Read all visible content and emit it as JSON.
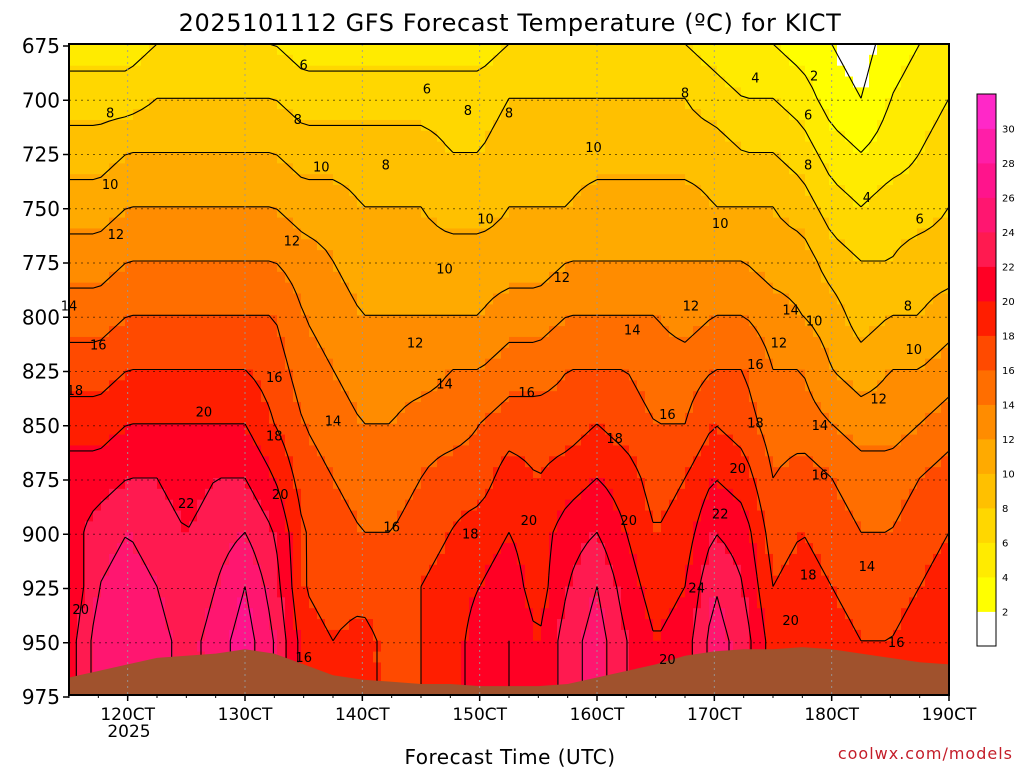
{
  "chart_data": {
    "type": "heatmap",
    "title": "2025101112 GFS Forecast Temperature (ºC) for KICT",
    "xlabel": "Forecast Time (UTC)",
    "ylabel": "",
    "watermark": "coolwx.com/models",
    "y_ticks": [
      "675",
      "700",
      "725",
      "750",
      "775",
      "800",
      "825",
      "850",
      "875",
      "900",
      "925",
      "950",
      "975"
    ],
    "y_tick_values": [
      675,
      700,
      725,
      750,
      775,
      800,
      825,
      850,
      875,
      900,
      925,
      950,
      975
    ],
    "ylim": [
      975,
      675
    ],
    "x_ticks": [
      "120CT",
      "130CT",
      "140CT",
      "150CT",
      "160CT",
      "170CT",
      "180CT",
      "190CT"
    ],
    "x_tick_values": [
      12,
      13,
      14,
      15,
      16,
      17,
      18,
      19
    ],
    "x_sublabel": "2025",
    "xlim": [
      11.5,
      19.0
    ],
    "units": "°C",
    "colorbar": {
      "ticks": [
        "2",
        "4",
        "6",
        "8",
        "10",
        "12",
        "14",
        "16",
        "18",
        "20",
        "22",
        "24",
        "26",
        "28",
        "30"
      ],
      "levels": [
        0,
        2,
        4,
        6,
        8,
        10,
        12,
        14,
        16,
        18,
        20,
        22,
        24,
        26,
        28,
        30,
        32
      ],
      "colors": [
        "#ffffff",
        "#ffff00",
        "#ffeb00",
        "#ffd700",
        "#ffc000",
        "#ffaa00",
        "#ff8c00",
        "#ff6e00",
        "#ff4a00",
        "#ff1e00",
        "#ff0024",
        "#ff1a50",
        "#ff1670",
        "#ff148c",
        "#ff1ea8",
        "#ff28c8"
      ]
    },
    "temperature_grid": {
      "x": [
        11.5,
        11.75,
        12.0,
        12.25,
        12.5,
        12.75,
        13.0,
        13.25,
        13.5,
        13.75,
        14.0,
        14.25,
        14.5,
        14.75,
        15.0,
        15.25,
        15.5,
        15.75,
        16.0,
        16.25,
        16.5,
        16.75,
        17.0,
        17.25,
        17.5,
        17.75,
        18.0,
        18.25,
        18.5,
        18.75,
        19.0
      ],
      "levels": [
        675,
        700,
        725,
        750,
        775,
        800,
        825,
        850,
        875,
        900,
        925,
        950,
        975
      ],
      "values": [
        [
          5,
          7,
          9,
          11,
          13,
          15,
          17,
          19,
          21,
          21,
          20,
          21,
          21
        ],
        [
          5,
          7,
          9,
          11,
          13,
          15,
          17,
          19,
          21,
          23,
          24,
          25,
          25
        ],
        [
          5,
          7,
          10,
          12,
          14,
          16,
          18,
          20,
          22,
          24,
          25,
          26,
          26
        ],
        [
          6,
          8,
          10,
          12,
          14,
          16,
          18,
          20,
          22,
          23,
          24,
          25,
          25
        ],
        [
          6,
          8,
          10,
          12,
          14,
          16,
          18,
          20,
          21,
          22,
          22,
          23,
          23
        ],
        [
          6,
          8,
          10,
          12,
          14,
          16,
          18,
          20,
          22,
          23,
          24,
          25,
          25
        ],
        [
          6,
          8,
          10,
          12,
          14,
          16,
          18,
          20,
          22,
          24,
          26,
          27,
          27
        ],
        [
          6,
          8,
          10,
          12,
          14,
          16,
          17,
          18,
          20,
          22,
          23,
          24,
          24
        ],
        [
          5,
          7,
          9,
          11,
          13,
          14,
          15,
          16,
          17,
          18,
          18,
          19,
          19
        ],
        [
          5,
          7,
          9,
          11,
          12,
          13,
          14,
          15,
          16,
          17,
          17,
          18,
          18
        ],
        [
          5,
          7,
          9,
          10,
          11,
          12,
          13,
          14,
          15,
          16,
          17,
          19,
          19
        ],
        [
          5,
          7,
          9,
          10,
          11,
          12,
          13,
          14,
          15,
          16,
          16,
          17,
          17
        ],
        [
          5,
          7,
          9,
          10,
          11,
          12,
          13,
          15,
          16,
          17,
          18,
          18,
          18
        ],
        [
          5,
          7,
          8,
          9,
          11,
          12,
          14,
          15,
          17,
          18,
          19,
          19,
          19
        ],
        [
          5,
          7,
          8,
          9,
          11,
          12,
          14,
          16,
          17,
          19,
          20,
          21,
          21
        ],
        [
          6,
          8,
          9,
          10,
          11,
          13,
          15,
          17,
          19,
          20,
          21,
          22,
          22
        ],
        [
          6,
          8,
          9,
          10,
          11,
          13,
          15,
          17,
          18,
          19,
          19,
          20,
          20
        ],
        [
          6,
          8,
          9,
          10,
          12,
          14,
          16,
          17,
          19,
          21,
          22,
          23,
          23
        ],
        [
          6,
          8,
          9,
          11,
          12,
          14,
          16,
          18,
          20,
          22,
          24,
          25,
          25
        ],
        [
          6,
          8,
          9,
          11,
          12,
          14,
          16,
          17,
          19,
          20,
          21,
          22,
          22
        ],
        [
          6,
          8,
          9,
          11,
          12,
          14,
          15,
          16,
          17,
          18,
          19,
          20,
          20
        ],
        [
          6,
          8,
          9,
          11,
          12,
          13,
          15,
          16,
          18,
          19,
          20,
          21,
          21
        ],
        [
          5,
          7,
          9,
          10,
          12,
          14,
          16,
          18,
          20,
          22,
          24,
          25,
          25
        ],
        [
          4,
          6,
          8,
          10,
          12,
          14,
          16,
          17,
          19,
          21,
          22,
          23,
          23
        ],
        [
          4,
          6,
          8,
          10,
          11,
          13,
          14,
          15,
          16,
          17,
          18,
          19,
          19
        ],
        [
          3,
          5,
          7,
          9,
          11,
          12,
          14,
          15,
          17,
          18,
          19,
          20,
          20
        ],
        [
          2,
          3,
          5,
          7,
          9,
          11,
          12,
          14,
          16,
          17,
          18,
          19,
          19
        ],
        [
          1,
          2,
          4,
          6,
          8,
          9,
          11,
          13,
          15,
          16,
          17,
          18,
          18
        ],
        [
          3,
          4,
          5,
          7,
          8,
          10,
          12,
          13,
          15,
          16,
          17,
          18,
          18
        ],
        [
          4,
          5,
          6,
          7,
          9,
          10,
          12,
          14,
          16,
          17,
          18,
          19,
          19
        ],
        [
          5,
          6,
          7,
          8,
          9,
          11,
          13,
          15,
          17,
          18,
          19,
          20,
          20
        ]
      ]
    },
    "contour_labels": [
      {
        "t": "6",
        "x": 13.5,
        "p": 684
      },
      {
        "t": "6",
        "x": 14.55,
        "p": 695
      },
      {
        "t": "4",
        "x": 17.35,
        "p": 690
      },
      {
        "t": "2",
        "x": 17.85,
        "p": 689
      },
      {
        "t": "8",
        "x": 11.85,
        "p": 706
      },
      {
        "t": "8",
        "x": 13.45,
        "p": 709
      },
      {
        "t": "8",
        "x": 14.9,
        "p": 705
      },
      {
        "t": "8",
        "x": 15.25,
        "p": 706
      },
      {
        "t": "8",
        "x": 16.75,
        "p": 697
      },
      {
        "t": "6",
        "x": 17.8,
        "p": 707
      },
      {
        "t": "4",
        "x": 18.3,
        "p": 745
      },
      {
        "t": "8",
        "x": 14.2,
        "p": 730
      },
      {
        "t": "10",
        "x": 15.97,
        "p": 722
      },
      {
        "t": "8",
        "x": 17.8,
        "p": 730
      },
      {
        "t": "10",
        "x": 11.85,
        "p": 739
      },
      {
        "t": "10",
        "x": 13.65,
        "p": 731
      },
      {
        "t": "10",
        "x": 15.05,
        "p": 755
      },
      {
        "t": "10",
        "x": 17.05,
        "p": 757
      },
      {
        "t": "6",
        "x": 18.75,
        "p": 755
      },
      {
        "t": "12",
        "x": 11.9,
        "p": 762
      },
      {
        "t": "12",
        "x": 13.4,
        "p": 765
      },
      {
        "t": "10",
        "x": 14.7,
        "p": 778
      },
      {
        "t": "12",
        "x": 15.7,
        "p": 782
      },
      {
        "t": "12",
        "x": 16.8,
        "p": 795
      },
      {
        "t": "14",
        "x": 11.5,
        "p": 795
      },
      {
        "t": "14",
        "x": 16.3,
        "p": 806
      },
      {
        "t": "14",
        "x": 17.65,
        "p": 797
      },
      {
        "t": "10",
        "x": 17.85,
        "p": 802
      },
      {
        "t": "8",
        "x": 18.65,
        "p": 795
      },
      {
        "t": "16",
        "x": 11.75,
        "p": 813
      },
      {
        "t": "12",
        "x": 17.55,
        "p": 812
      },
      {
        "t": "12",
        "x": 14.45,
        "p": 812
      },
      {
        "t": "10",
        "x": 18.7,
        "p": 815
      },
      {
        "t": "18",
        "x": 11.55,
        "p": 834
      },
      {
        "t": "16",
        "x": 13.25,
        "p": 828
      },
      {
        "t": "16",
        "x": 17.35,
        "p": 822
      },
      {
        "t": "14",
        "x": 14.7,
        "p": 831
      },
      {
        "t": "16",
        "x": 15.4,
        "p": 835
      },
      {
        "t": "12",
        "x": 18.4,
        "p": 838
      },
      {
        "t": "20",
        "x": 12.65,
        "p": 844
      },
      {
        "t": "14",
        "x": 13.75,
        "p": 848
      },
      {
        "t": "16",
        "x": 16.6,
        "p": 845
      },
      {
        "t": "18",
        "x": 17.35,
        "p": 849
      },
      {
        "t": "14",
        "x": 17.9,
        "p": 850
      },
      {
        "t": "18",
        "x": 13.25,
        "p": 855
      },
      {
        "t": "18",
        "x": 16.15,
        "p": 856
      },
      {
        "t": "22",
        "x": 12.5,
        "p": 886
      },
      {
        "t": "20",
        "x": 13.3,
        "p": 882
      },
      {
        "t": "20",
        "x": 17.2,
        "p": 870
      },
      {
        "t": "16",
        "x": 17.9,
        "p": 873
      },
      {
        "t": "22",
        "x": 17.05,
        "p": 891
      },
      {
        "t": "20",
        "x": 15.42,
        "p": 894
      },
      {
        "t": "20",
        "x": 16.27,
        "p": 894
      },
      {
        "t": "16",
        "x": 14.25,
        "p": 897
      },
      {
        "t": "18",
        "x": 14.92,
        "p": 900
      },
      {
        "t": "14",
        "x": 18.3,
        "p": 915
      },
      {
        "t": "20",
        "x": 11.6,
        "p": 935
      },
      {
        "t": "24",
        "x": 16.85,
        "p": 925
      },
      {
        "t": "18",
        "x": 17.8,
        "p": 919
      },
      {
        "t": "20",
        "x": 17.65,
        "p": 940
      },
      {
        "t": "16",
        "x": 13.5,
        "p": 957
      },
      {
        "t": "20",
        "x": 16.6,
        "p": 958
      },
      {
        "t": "16",
        "x": 18.55,
        "p": 950
      }
    ]
  }
}
